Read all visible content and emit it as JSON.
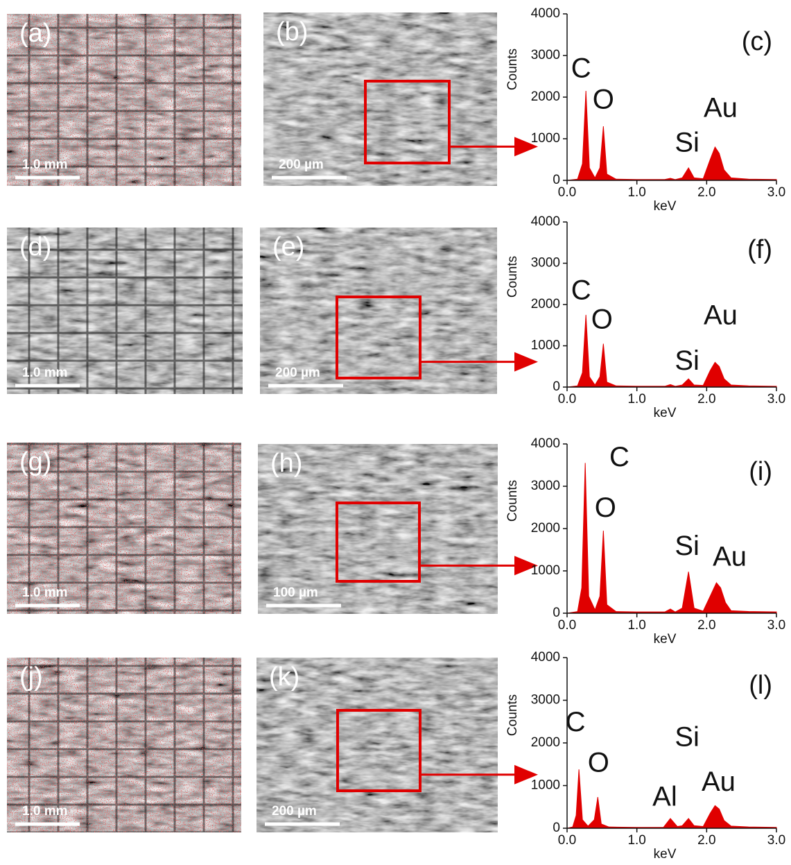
{
  "chart_data": [
    {
      "type": "area",
      "label": "(c)",
      "xlabel": "keV",
      "ylabel": "Counts",
      "color": "#e00000",
      "xlim": [
        0,
        3.0
      ],
      "ylim": [
        0,
        4000
      ],
      "xticks": [
        {
          "value": 0,
          "label": "0.0"
        },
        {
          "value": 1,
          "label": "1.0"
        },
        {
          "value": 2,
          "label": "2.0"
        },
        {
          "value": 3,
          "label": "3.0"
        }
      ],
      "yticks": [
        0,
        1000,
        2000,
        3000,
        4000
      ],
      "x": [
        0,
        0.15,
        0.22,
        0.27,
        0.32,
        0.4,
        0.47,
        0.52,
        0.57,
        0.7,
        1.0,
        1.4,
        1.48,
        1.55,
        1.65,
        1.74,
        1.82,
        1.95,
        2.05,
        2.12,
        2.18,
        2.25,
        2.35,
        2.6,
        3.0
      ],
      "values": [
        0,
        30,
        400,
        2150,
        300,
        60,
        300,
        1300,
        150,
        30,
        20,
        20,
        50,
        20,
        60,
        300,
        60,
        40,
        500,
        800,
        650,
        250,
        60,
        30,
        20
      ],
      "annotations": [
        {
          "text": "C",
          "x": 0.2,
          "y": 2650
        },
        {
          "text": "O",
          "x": 0.52,
          "y": 1900
        },
        {
          "text": "Si",
          "x": 1.72,
          "y": 870
        },
        {
          "text": "Au",
          "x": 2.2,
          "y": 1700
        }
      ]
    },
    {
      "type": "area",
      "label": "(f)",
      "xlabel": "keV",
      "ylabel": "Counts",
      "color": "#e00000",
      "xlim": [
        0,
        3.0
      ],
      "ylim": [
        0,
        4000
      ],
      "xticks": [
        {
          "value": 0,
          "label": "0.0"
        },
        {
          "value": 1,
          "label": "1.0"
        },
        {
          "value": 2,
          "label": "2.0"
        },
        {
          "value": 3,
          "label": "3.0"
        }
      ],
      "yticks": [
        0,
        1000,
        2000,
        3000,
        4000
      ],
      "x": [
        0,
        0.15,
        0.22,
        0.27,
        0.32,
        0.4,
        0.47,
        0.52,
        0.57,
        0.7,
        1.0,
        1.4,
        1.48,
        1.55,
        1.65,
        1.74,
        1.82,
        1.95,
        2.05,
        2.12,
        2.18,
        2.25,
        2.35,
        2.6,
        3.0
      ],
      "values": [
        0,
        30,
        350,
        1750,
        250,
        50,
        250,
        1050,
        120,
        30,
        20,
        20,
        60,
        20,
        50,
        200,
        50,
        40,
        400,
        600,
        500,
        200,
        50,
        30,
        20
      ],
      "annotations": [
        {
          "text": "C",
          "x": 0.2,
          "y": 2300
        },
        {
          "text": "O",
          "x": 0.5,
          "y": 1600
        },
        {
          "text": "Si",
          "x": 1.72,
          "y": 600
        },
        {
          "text": "Au",
          "x": 2.2,
          "y": 1700
        }
      ]
    },
    {
      "type": "area",
      "label": "(i)",
      "xlabel": "keV",
      "ylabel": "Counts",
      "color": "#e00000",
      "xlim": [
        0,
        3.0
      ],
      "ylim": [
        0,
        4000
      ],
      "xticks": [
        {
          "value": 0,
          "label": "0.0"
        },
        {
          "value": 1,
          "label": "1.0"
        },
        {
          "value": 2,
          "label": "2.0"
        },
        {
          "value": 3,
          "label": "3.0"
        }
      ],
      "yticks": [
        0,
        1000,
        2000,
        3000,
        4000
      ],
      "x": [
        0,
        0.15,
        0.21,
        0.26,
        0.31,
        0.4,
        0.47,
        0.52,
        0.57,
        0.7,
        1.0,
        1.4,
        1.48,
        1.55,
        1.65,
        1.74,
        1.82,
        1.95,
        2.05,
        2.14,
        2.2,
        2.27,
        2.35,
        2.6,
        3.0
      ],
      "values": [
        0,
        40,
        600,
        3550,
        400,
        80,
        400,
        1950,
        200,
        40,
        30,
        30,
        100,
        30,
        120,
        980,
        120,
        50,
        400,
        720,
        600,
        250,
        60,
        40,
        30
      ],
      "annotations": [
        {
          "text": "C",
          "x": 0.75,
          "y": 3650
        },
        {
          "text": "O",
          "x": 0.55,
          "y": 2450
        },
        {
          "text": "Si",
          "x": 1.72,
          "y": 1550
        },
        {
          "text": "Au",
          "x": 2.33,
          "y": 1300
        }
      ]
    },
    {
      "type": "area",
      "label": "(l)",
      "xlabel": "keV",
      "ylabel": "Counts",
      "color": "#e00000",
      "xlim": [
        0,
        3.0
      ],
      "ylim": [
        0,
        4000
      ],
      "xticks": [
        {
          "value": 0,
          "label": "0.0"
        },
        {
          "value": 1,
          "label": "1.0"
        },
        {
          "value": 2,
          "label": "2.0"
        },
        {
          "value": 3,
          "label": "3.0"
        }
      ],
      "yticks": [
        0,
        1000,
        2000,
        3000,
        4000
      ],
      "x": [
        0,
        0.08,
        0.13,
        0.17,
        0.22,
        0.3,
        0.39,
        0.44,
        0.49,
        0.6,
        1.0,
        1.38,
        1.48,
        1.58,
        1.65,
        1.74,
        1.82,
        1.95,
        2.05,
        2.12,
        2.18,
        2.25,
        2.35,
        2.6,
        3.0
      ],
      "values": [
        0,
        30,
        300,
        1380,
        200,
        50,
        200,
        730,
        100,
        30,
        20,
        20,
        230,
        40,
        60,
        230,
        60,
        40,
        350,
        530,
        450,
        180,
        50,
        30,
        20
      ],
      "annotations": [
        {
          "text": "C",
          "x": 0.12,
          "y": 2450
        },
        {
          "text": "O",
          "x": 0.45,
          "y": 1500
        },
        {
          "text": "Al",
          "x": 1.4,
          "y": 700
        },
        {
          "text": "Si",
          "x": 1.72,
          "y": 2100
        },
        {
          "text": "Au",
          "x": 2.17,
          "y": 1050
        }
      ]
    }
  ],
  "images": [
    {
      "left": "(a)",
      "left_scale": "1.0 mm",
      "right": "(b)",
      "right_scale": "200 µm"
    },
    {
      "left": "(d)",
      "left_scale": "1.0 mm",
      "right": "(e)",
      "right_scale": "200 µm"
    },
    {
      "left": "(g)",
      "left_scale": "1.0 mm",
      "right": "(h)",
      "right_scale": "100 µm"
    },
    {
      "left": "(j)",
      "left_scale": "1.0 mm",
      "right": "(k)",
      "right_scale": "200 µm"
    }
  ]
}
